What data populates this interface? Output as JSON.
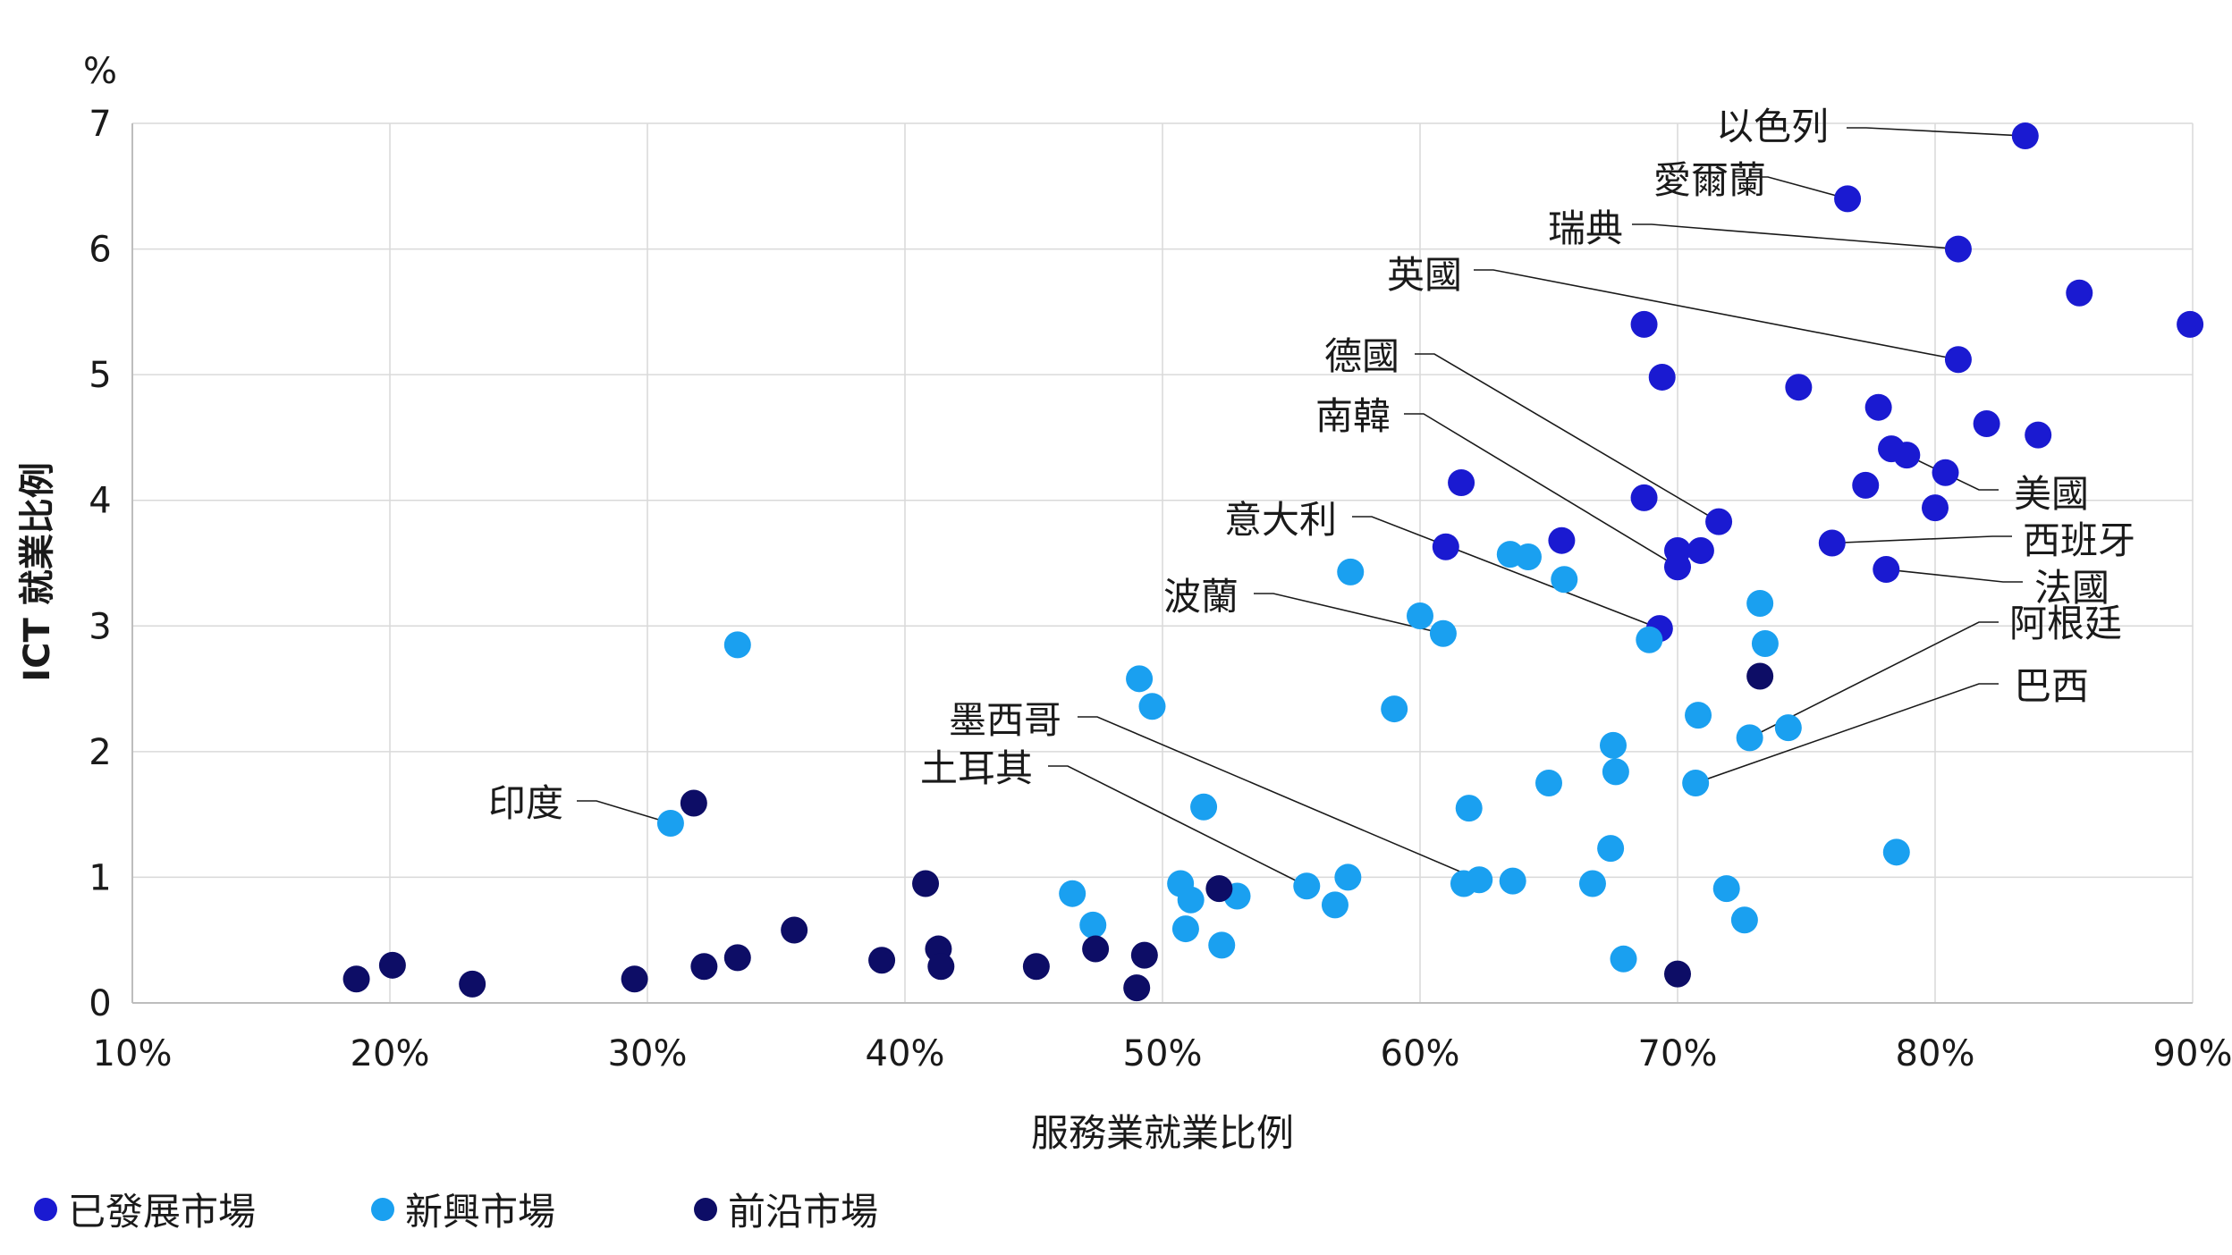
{
  "chart_data": {
    "type": "scatter",
    "unit_label": "%",
    "xlabel": "服務業就業比例",
    "ylabel": "ICT 就業比例",
    "xlim": [
      10,
      90
    ],
    "ylim": [
      0,
      7
    ],
    "x_ticks": [
      10,
      20,
      30,
      40,
      50,
      60,
      70,
      80,
      90
    ],
    "x_tick_labels": [
      "10%",
      "20%",
      "30%",
      "40%",
      "50%",
      "60%",
      "70%",
      "80%",
      "90%"
    ],
    "y_ticks": [
      0,
      1,
      2,
      3,
      4,
      5,
      6,
      7
    ],
    "y_tick_labels": [
      "0",
      "1",
      "2",
      "3",
      "4",
      "5",
      "6",
      "7"
    ],
    "grid": true,
    "legend_position": "bottom-left",
    "series": [
      {
        "name": "已發展市場",
        "color": "#1a1ad1",
        "points": [
          {
            "x": 83.5,
            "y": 6.9
          },
          {
            "x": 76.6,
            "y": 6.4
          },
          {
            "x": 80.9,
            "y": 6.0
          },
          {
            "x": 85.6,
            "y": 5.65
          },
          {
            "x": 89.9,
            "y": 5.4
          },
          {
            "x": 68.7,
            "y": 5.4
          },
          {
            "x": 80.9,
            "y": 5.12
          },
          {
            "x": 69.4,
            "y": 4.98
          },
          {
            "x": 74.7,
            "y": 4.9
          },
          {
            "x": 77.8,
            "y": 4.74
          },
          {
            "x": 82.0,
            "y": 4.61
          },
          {
            "x": 84.0,
            "y": 4.52
          },
          {
            "x": 78.3,
            "y": 4.41
          },
          {
            "x": 78.9,
            "y": 4.36
          },
          {
            "x": 80.4,
            "y": 4.22
          },
          {
            "x": 61.6,
            "y": 4.14
          },
          {
            "x": 77.3,
            "y": 4.12
          },
          {
            "x": 68.7,
            "y": 4.02
          },
          {
            "x": 80.0,
            "y": 3.94
          },
          {
            "x": 71.6,
            "y": 3.83
          },
          {
            "x": 65.5,
            "y": 3.68
          },
          {
            "x": 76.0,
            "y": 3.66
          },
          {
            "x": 61.0,
            "y": 3.63
          },
          {
            "x": 70.0,
            "y": 3.6
          },
          {
            "x": 70.9,
            "y": 3.6
          },
          {
            "x": 70.0,
            "y": 3.47
          },
          {
            "x": 78.1,
            "y": 3.45
          },
          {
            "x": 69.3,
            "y": 2.98
          }
        ]
      },
      {
        "name": "新興市場",
        "color": "#1aa0f0",
        "points": [
          {
            "x": 63.5,
            "y": 3.57
          },
          {
            "x": 64.2,
            "y": 3.55
          },
          {
            "x": 57.3,
            "y": 3.43
          },
          {
            "x": 65.6,
            "y": 3.37
          },
          {
            "x": 73.2,
            "y": 3.18
          },
          {
            "x": 60.0,
            "y": 3.08
          },
          {
            "x": 60.9,
            "y": 2.94
          },
          {
            "x": 68.9,
            "y": 2.89
          },
          {
            "x": 73.4,
            "y": 2.86
          },
          {
            "x": 33.5,
            "y": 2.85
          },
          {
            "x": 49.1,
            "y": 2.58
          },
          {
            "x": 49.6,
            "y": 2.36
          },
          {
            "x": 59.0,
            "y": 2.34
          },
          {
            "x": 70.8,
            "y": 2.29
          },
          {
            "x": 74.3,
            "y": 2.19
          },
          {
            "x": 72.8,
            "y": 2.11
          },
          {
            "x": 67.5,
            "y": 2.05
          },
          {
            "x": 67.6,
            "y": 1.84
          },
          {
            "x": 70.7,
            "y": 1.75
          },
          {
            "x": 65.0,
            "y": 1.75
          },
          {
            "x": 51.6,
            "y": 1.56
          },
          {
            "x": 61.9,
            "y": 1.55
          },
          {
            "x": 30.9,
            "y": 1.43
          },
          {
            "x": 67.4,
            "y": 1.23
          },
          {
            "x": 78.5,
            "y": 1.2
          },
          {
            "x": 57.2,
            "y": 1.0
          },
          {
            "x": 62.3,
            "y": 0.98
          },
          {
            "x": 63.6,
            "y": 0.97
          },
          {
            "x": 61.7,
            "y": 0.95
          },
          {
            "x": 50.7,
            "y": 0.95
          },
          {
            "x": 66.7,
            "y": 0.95
          },
          {
            "x": 55.6,
            "y": 0.93
          },
          {
            "x": 71.9,
            "y": 0.91
          },
          {
            "x": 46.5,
            "y": 0.87
          },
          {
            "x": 52.9,
            "y": 0.85
          },
          {
            "x": 51.1,
            "y": 0.82
          },
          {
            "x": 56.7,
            "y": 0.78
          },
          {
            "x": 72.6,
            "y": 0.66
          },
          {
            "x": 47.3,
            "y": 0.62
          },
          {
            "x": 50.9,
            "y": 0.59
          },
          {
            "x": 52.3,
            "y": 0.46
          },
          {
            "x": 67.9,
            "y": 0.35
          }
        ]
      },
      {
        "name": "前沿市場",
        "color": "#0d0d66",
        "points": [
          {
            "x": 73.2,
            "y": 2.6
          },
          {
            "x": 31.8,
            "y": 1.59
          },
          {
            "x": 40.8,
            "y": 0.95
          },
          {
            "x": 52.2,
            "y": 0.91
          },
          {
            "x": 35.7,
            "y": 0.58
          },
          {
            "x": 41.3,
            "y": 0.43
          },
          {
            "x": 47.4,
            "y": 0.43
          },
          {
            "x": 49.3,
            "y": 0.38
          },
          {
            "x": 33.5,
            "y": 0.36
          },
          {
            "x": 39.1,
            "y": 0.34
          },
          {
            "x": 20.1,
            "y": 0.3
          },
          {
            "x": 32.2,
            "y": 0.29
          },
          {
            "x": 41.4,
            "y": 0.29
          },
          {
            "x": 45.1,
            "y": 0.29
          },
          {
            "x": 70.0,
            "y": 0.23
          },
          {
            "x": 29.5,
            "y": 0.19
          },
          {
            "x": 18.7,
            "y": 0.19
          },
          {
            "x": 23.2,
            "y": 0.15
          },
          {
            "x": 49.0,
            "y": 0.12
          }
        ]
      }
    ],
    "annotations": [
      {
        "text": "以色列",
        "x": 83.5,
        "y": 6.9
      },
      {
        "text": "愛爾蘭",
        "x": 76.6,
        "y": 6.4
      },
      {
        "text": "瑞典",
        "x": 80.9,
        "y": 6.0
      },
      {
        "text": "英國",
        "x": 80.9,
        "y": 5.12
      },
      {
        "text": "德國",
        "x": 71.6,
        "y": 3.83
      },
      {
        "text": "南韓",
        "x": 70.0,
        "y": 3.47
      },
      {
        "text": "意大利",
        "x": 69.3,
        "y": 2.98
      },
      {
        "text": "波蘭",
        "x": 60.9,
        "y": 2.94
      },
      {
        "text": "墨西哥",
        "x": 62.3,
        "y": 0.98
      },
      {
        "text": "土耳其",
        "x": 55.6,
        "y": 0.93
      },
      {
        "text": "印度",
        "x": 30.9,
        "y": 1.43
      },
      {
        "text": "美國",
        "x": 78.9,
        "y": 4.36
      },
      {
        "text": "西班牙",
        "x": 76.0,
        "y": 3.66
      },
      {
        "text": "法國",
        "x": 78.1,
        "y": 3.45
      },
      {
        "text": "阿根廷",
        "x": 72.8,
        "y": 2.11
      },
      {
        "text": "巴西",
        "x": 70.7,
        "y": 1.75
      }
    ]
  }
}
